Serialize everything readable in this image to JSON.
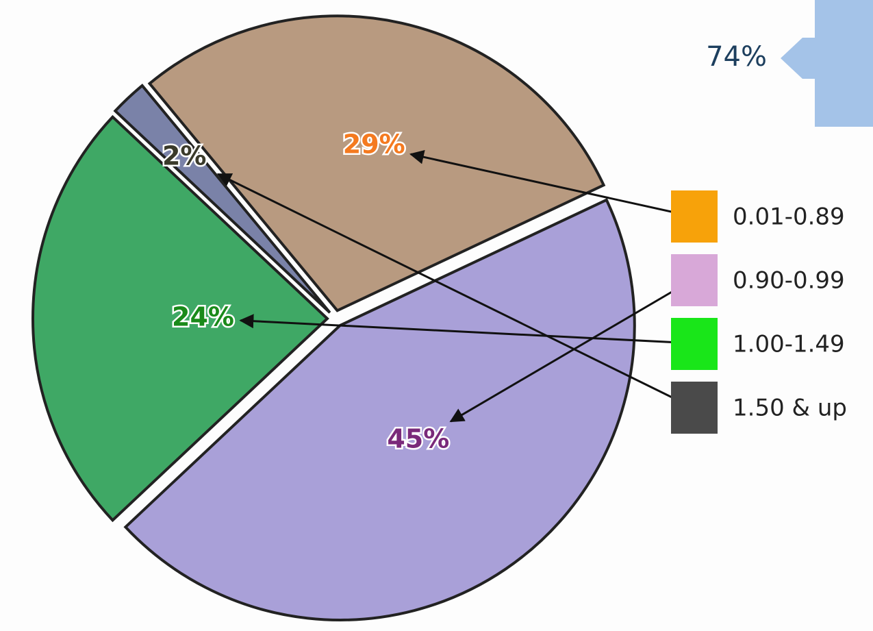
{
  "chart_data": {
    "type": "pie",
    "values": [
      29,
      45,
      24,
      2
    ],
    "value_labels": [
      "29%",
      "45%",
      "24%",
      "2%"
    ],
    "label_colors": [
      "#f47a20",
      "#7a2a7a",
      "#1a8a1a",
      "#3a3a2a"
    ],
    "slice_colors": [
      "#b89a80",
      "#a9a0d8",
      "#3fa865",
      "#7a82a8"
    ],
    "series": [
      {
        "name": "0.01-0.89",
        "color": "#f7a20a"
      },
      {
        "name": "0.90-0.99",
        "color": "#d8a8d8"
      },
      {
        "name": "1.00-1.49",
        "color": "#19e619"
      },
      {
        "name": "1.50 & up",
        "color": "#4a4a4a"
      }
    ],
    "annotation": "74%",
    "legend": "right"
  }
}
